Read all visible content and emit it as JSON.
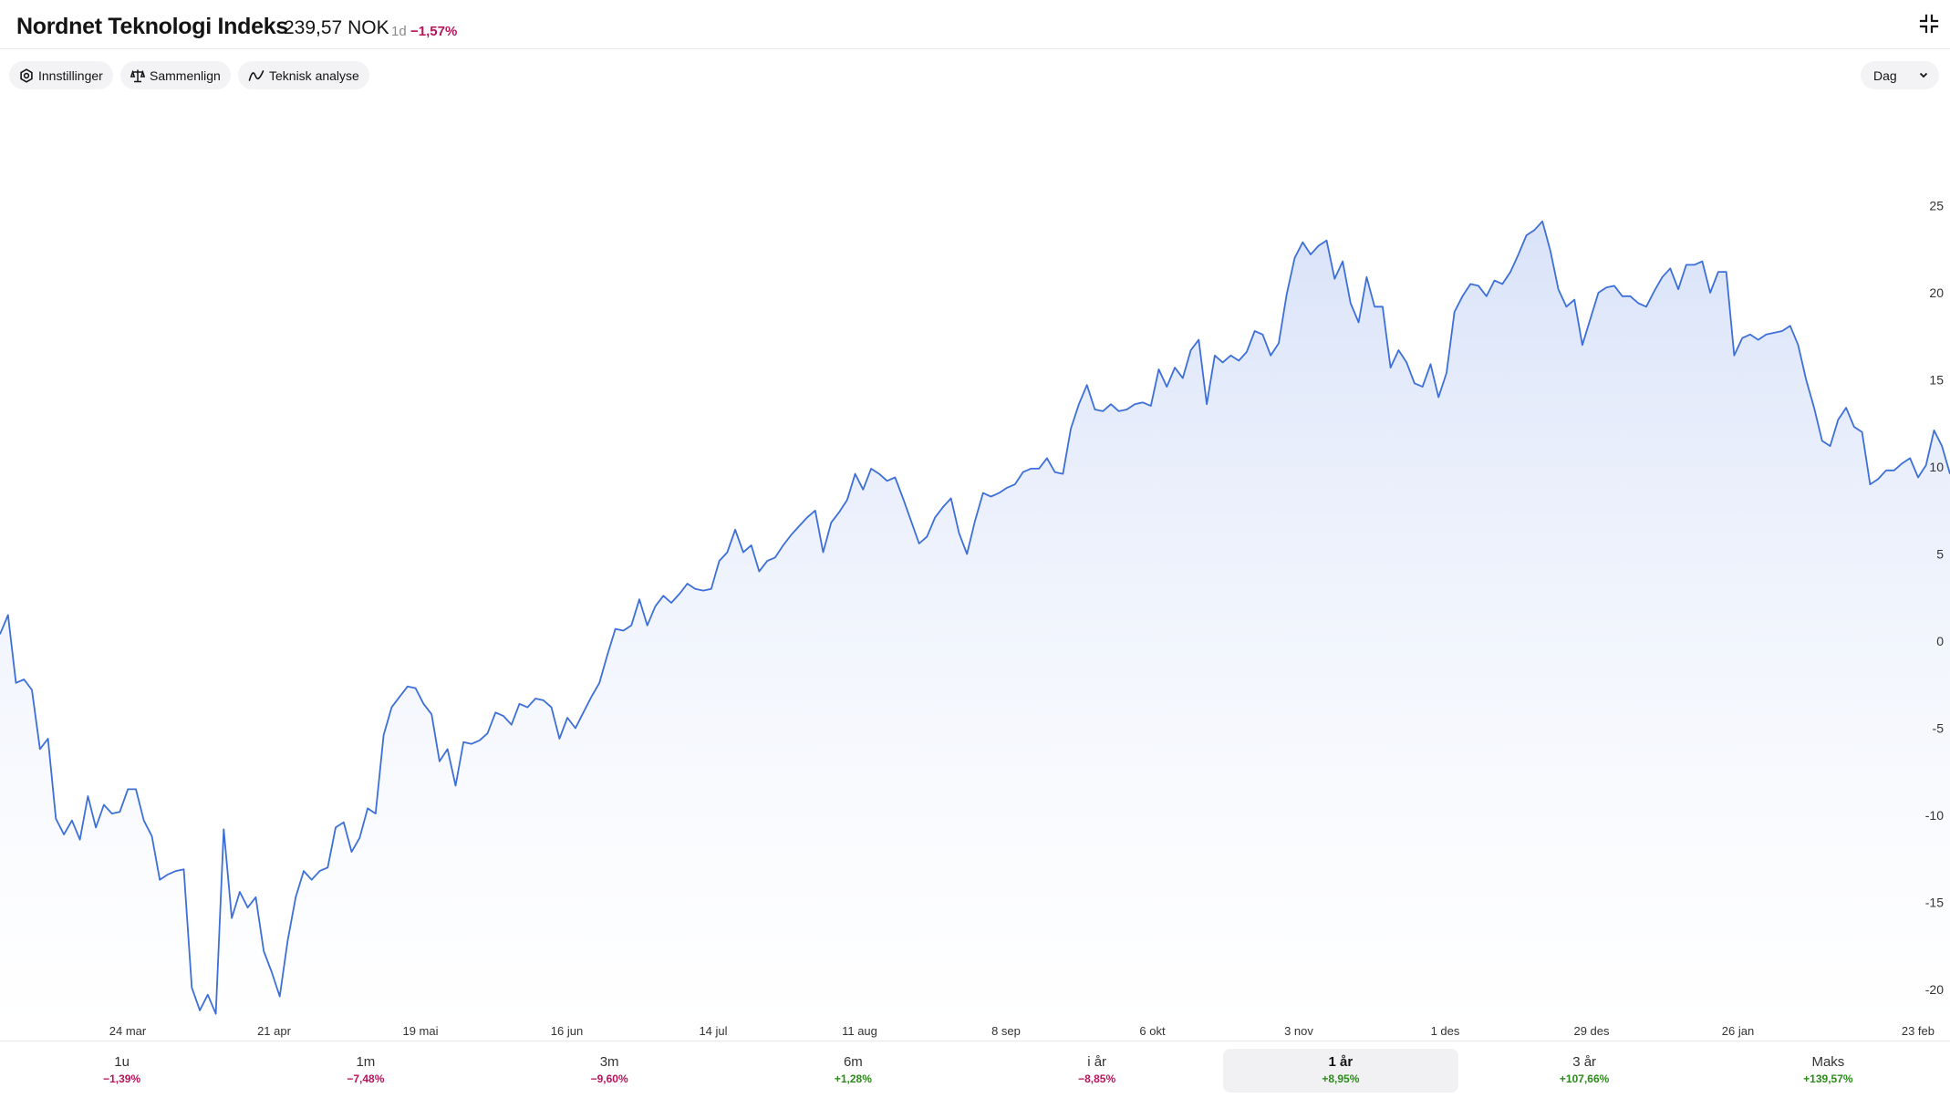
{
  "header": {
    "title": "Nordnet Teknologi Indeks",
    "price": "239,57 NOK",
    "period": "1d",
    "change": "−1,57%"
  },
  "toolbar": {
    "settings_label": "Innstillinger",
    "compare_label": "Sammenlign",
    "ta_label": "Teknisk analyse",
    "interval_value": "Dag"
  },
  "icons": {
    "collapse": "collapse-icon",
    "settings": "gear-icon",
    "compare": "scale-icon",
    "ta": "line-chart-icon",
    "chevron": "chevron-down-icon"
  },
  "colors": {
    "line": "#3d6fd8",
    "area_top": "#d7e1f8",
    "negative": "#b8145a",
    "positive": "#2c8a1a"
  },
  "periods": [
    {
      "label": "1u",
      "value": "−1,39%",
      "trend": "neg"
    },
    {
      "label": "1m",
      "value": "−7,48%",
      "trend": "neg"
    },
    {
      "label": "3m",
      "value": "−9,60%",
      "trend": "neg"
    },
    {
      "label": "6m",
      "value": "+1,28%",
      "trend": "pos"
    },
    {
      "label": "i år",
      "value": "−8,85%",
      "trend": "neg"
    },
    {
      "label": "1 år",
      "value": "+8,95%",
      "trend": "pos",
      "active": true
    },
    {
      "label": "3 år",
      "value": "+107,66%",
      "trend": "pos"
    },
    {
      "label": "Maks",
      "value": "+139,57%",
      "trend": "pos"
    }
  ],
  "chart_data": {
    "type": "area",
    "ylim": [
      -21.5,
      28
    ],
    "yticks": [
      25,
      20,
      15,
      10,
      5,
      0,
      -5,
      -10,
      -15,
      -20
    ],
    "xticks": [
      "24 mar",
      "21 apr",
      "19 mai",
      "16 jun",
      "14 jul",
      "11 aug",
      "8 sep",
      "6 okt",
      "3 nov",
      "1 des",
      "29 des",
      "26 jan",
      "23 feb"
    ],
    "series": [
      {
        "values": [
          0.4,
          1.5,
          -2.4,
          -2.2,
          -2.8,
          -6.2,
          -5.6,
          -10.2,
          -11.1,
          -10.3,
          -11.4,
          -8.9,
          -10.7,
          -9.4,
          -9.9,
          -9.8,
          -8.5,
          -8.5,
          -10.3,
          -11.2,
          -13.7,
          -13.4,
          -13.2,
          -13.1,
          -19.9,
          -21.2,
          -20.3,
          -21.4,
          -10.8,
          -15.9,
          -14.4,
          -15.3,
          -14.7,
          -17.8,
          -19.0,
          -20.4,
          -17.2,
          -14.7,
          -13.2,
          -13.7,
          -13.2,
          -13.0,
          -10.7,
          -10.4,
          -12.1,
          -11.3,
          -9.6,
          -9.9,
          -5.4,
          -3.8,
          -3.2,
          -2.6,
          -2.7,
          -3.6,
          -4.2,
          -6.9,
          -6.2,
          -8.3,
          -5.8,
          -5.9,
          -5.7,
          -5.3,
          -4.1,
          -4.3,
          -4.8,
          -3.6,
          -3.8,
          -3.3,
          -3.4,
          -3.8,
          -5.6,
          -4.4,
          -5.0,
          -4.1,
          -3.2,
          -2.4,
          -0.8,
          0.7,
          0.6,
          0.9,
          2.4,
          0.9,
          2.0,
          2.6,
          2.2,
          2.7,
          3.3,
          3.0,
          2.9,
          3.0,
          4.6,
          5.1,
          6.4,
          5.1,
          5.5,
          4.0,
          4.6,
          4.8,
          5.5,
          6.1,
          6.6,
          7.1,
          7.5,
          5.1,
          6.8,
          7.4,
          8.1,
          9.6,
          8.7,
          9.9,
          9.6,
          9.2,
          9.4,
          8.2,
          6.9,
          5.6,
          6.0,
          7.1,
          7.7,
          8.2,
          6.2,
          5.0,
          6.9,
          8.5,
          8.3,
          8.5,
          8.8,
          9.0,
          9.7,
          9.9,
          9.9,
          10.5,
          9.7,
          9.6,
          12.2,
          13.6,
          14.7,
          13.3,
          13.2,
          13.6,
          13.2,
          13.3,
          13.6,
          13.7,
          13.5,
          15.6,
          14.6,
          15.7,
          15.1,
          16.7,
          17.3,
          13.6,
          16.4,
          16.0,
          16.4,
          16.1,
          16.6,
          17.8,
          17.6,
          16.4,
          17.1,
          19.9,
          22.0,
          22.9,
          22.2,
          22.7,
          23.0,
          20.8,
          21.8,
          19.4,
          18.3,
          20.9,
          19.2,
          19.2,
          15.7,
          16.7,
          16.0,
          14.8,
          14.6,
          15.9,
          14.0,
          15.4,
          18.9,
          19.8,
          20.5,
          20.4,
          19.8,
          20.7,
          20.5,
          21.2,
          22.2,
          23.3,
          23.6,
          24.1,
          22.4,
          20.2,
          19.2,
          19.6,
          17.0,
          18.5,
          20.0,
          20.3,
          20.4,
          19.8,
          19.8,
          19.4,
          19.2,
          20.1,
          20.9,
          21.4,
          20.2,
          21.6,
          21.6,
          21.8,
          20.0,
          21.2,
          21.2,
          16.4,
          17.4,
          17.6,
          17.3,
          17.6,
          17.7,
          17.8,
          18.1,
          17.0,
          15.0,
          13.4,
          11.5,
          11.2,
          12.7,
          13.4,
          12.3,
          12.0,
          9.0,
          9.3,
          9.8,
          9.8,
          10.2,
          10.5,
          9.4,
          10.1,
          12.1,
          11.2,
          9.6
        ]
      }
    ],
    "grid": false,
    "legend": "none"
  }
}
